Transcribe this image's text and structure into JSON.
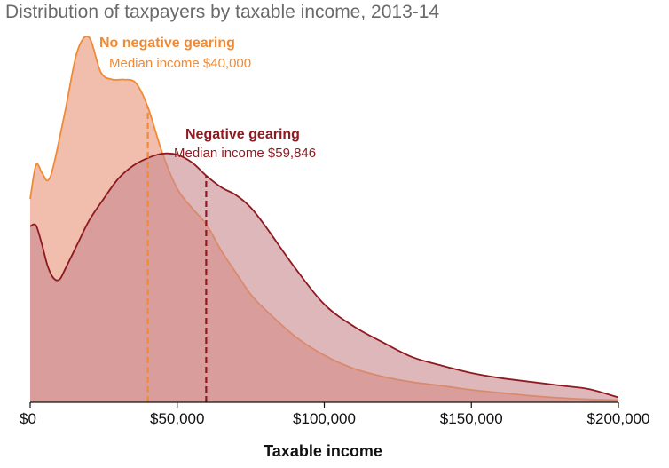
{
  "chart_data": {
    "type": "area",
    "title": "Distribution of taxpayers by taxable income, 2013-14",
    "xlabel": "Taxable income",
    "ylabel": "",
    "xlim": [
      0,
      200000
    ],
    "ylim": [
      0,
      1
    ],
    "x_ticks": [
      0,
      50000,
      100000,
      150000,
      200000
    ],
    "x_tick_labels": [
      "$0",
      "$50,000",
      "$100,000",
      "$150,000",
      "$200,000"
    ],
    "grid": false,
    "legend": "none",
    "series": [
      {
        "name": "No negative gearing",
        "color": "#f28a33",
        "fill": "#f0b9a8",
        "median": 40000,
        "annotation_title": "No negative gearing",
        "annotation_label": "Median income $40,000",
        "x": [
          0,
          2000,
          4000,
          6000,
          8000,
          12000,
          16000,
          20000,
          24000,
          28000,
          32000,
          36000,
          40000,
          45000,
          50000,
          55000,
          60000,
          65000,
          70000,
          75000,
          80000,
          90000,
          100000,
          110000,
          120000,
          130000,
          140000,
          150000,
          160000,
          170000,
          180000,
          190000,
          200000
        ],
        "values": [
          0.554,
          0.647,
          0.626,
          0.605,
          0.647,
          0.798,
          0.956,
          0.995,
          0.9,
          0.88,
          0.88,
          0.87,
          0.805,
          0.678,
          0.582,
          0.53,
          0.484,
          0.413,
          0.353,
          0.294,
          0.252,
          0.18,
          0.128,
          0.092,
          0.07,
          0.055,
          0.045,
          0.034,
          0.026,
          0.018,
          0.012,
          0.008,
          0.006
        ]
      },
      {
        "name": "Negative gearing",
        "color": "#8e1a1f",
        "fill": "#c98a92",
        "median": 59846,
        "annotation_title": "Negative gearing",
        "annotation_label": "Median income $59,846",
        "x": [
          0,
          2000,
          4000,
          6000,
          8000,
          10000,
          12000,
          16000,
          20000,
          25000,
          30000,
          35000,
          40000,
          45000,
          50000,
          55000,
          60000,
          65000,
          70000,
          75000,
          80000,
          90000,
          100000,
          110000,
          120000,
          130000,
          140000,
          150000,
          160000,
          170000,
          180000,
          190000,
          200000
        ],
        "values": [
          0.48,
          0.482,
          0.43,
          0.37,
          0.338,
          0.335,
          0.365,
          0.43,
          0.495,
          0.555,
          0.61,
          0.645,
          0.666,
          0.678,
          0.675,
          0.654,
          0.617,
          0.586,
          0.565,
          0.531,
          0.48,
          0.367,
          0.267,
          0.207,
          0.163,
          0.123,
          0.1,
          0.08,
          0.066,
          0.056,
          0.046,
          0.036,
          0.013
        ]
      }
    ]
  }
}
